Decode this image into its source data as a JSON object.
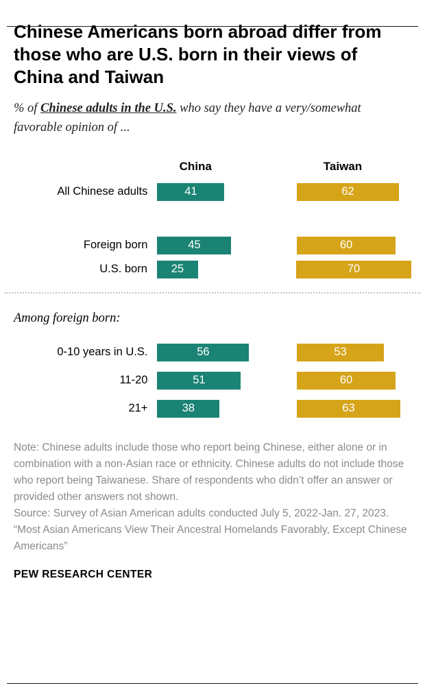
{
  "header": {
    "title": "Chinese Americans born abroad differ from those who are U.S. born in their views of China and Taiwan",
    "subtitle_prefix": "% of ",
    "subtitle_emphasis": "Chinese adults in the U.S.",
    "subtitle_suffix": " who say they have a very/somewhat favorable opinion of ..."
  },
  "chart_data": {
    "type": "bar",
    "orientation": "horizontal",
    "unit": "%",
    "xlim": [
      0,
      100
    ],
    "value_labels": "inside-white",
    "columns": [
      {
        "name": "China",
        "color": "#1B8374"
      },
      {
        "name": "Taiwan",
        "color": "#D6A419"
      }
    ],
    "groups": [
      {
        "rows": [
          {
            "label": "All Chinese adults",
            "values": [
              41,
              62
            ]
          }
        ]
      },
      {
        "rows": [
          {
            "label": "Foreign born",
            "values": [
              45,
              60
            ]
          },
          {
            "label": "U.S. born",
            "values": [
              25,
              70
            ]
          }
        ]
      },
      {
        "divider_before": true,
        "label": "Among foreign born:",
        "rows": [
          {
            "label": "0-10 years in U.S.",
            "values": [
              56,
              53
            ]
          },
          {
            "label": "11-20",
            "values": [
              51,
              60
            ]
          },
          {
            "label": "21+",
            "values": [
              38,
              63
            ]
          }
        ]
      }
    ]
  },
  "notes": {
    "note": "Note: Chinese adults include those who report being Chinese, either alone or in combination with a non-Asian race or ethnicity. Chinese adults do not include those who report being Taiwanese. Share of respondents who didn’t offer an answer or provided other answers not shown.",
    "source": "Source: Survey of Asian American adults conducted July 5, 2022-Jan. 27, 2023.",
    "report": "“Most Asian Americans View Their Ancestral Homelands Favorably, Except Chinese Americans”"
  },
  "footer": {
    "brand": "PEW RESEARCH CENTER"
  }
}
